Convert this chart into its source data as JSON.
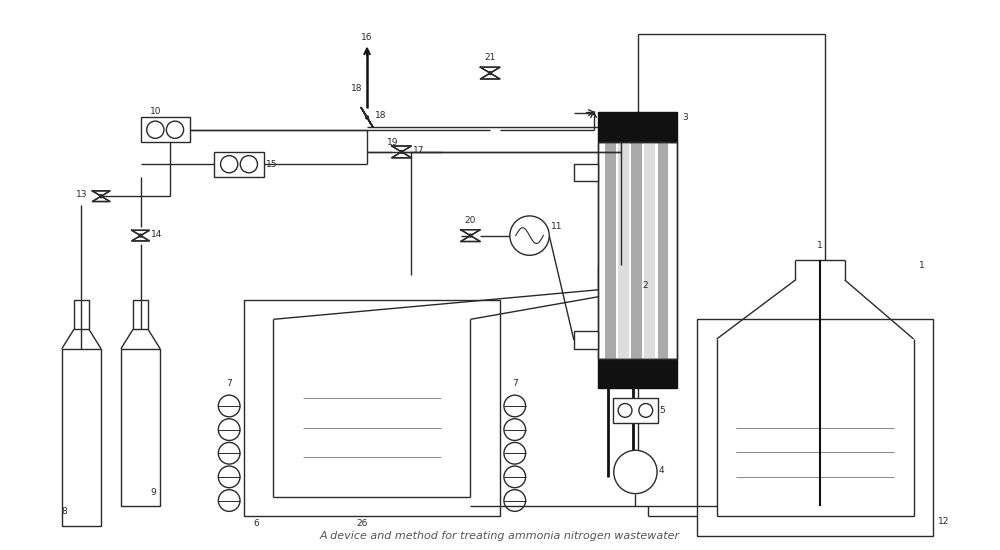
{
  "title": "A device and method for treating ammonia nitrogen wastewater",
  "bg_color": "#ffffff",
  "line_color": "#2a2a2a",
  "lw": 1.0
}
